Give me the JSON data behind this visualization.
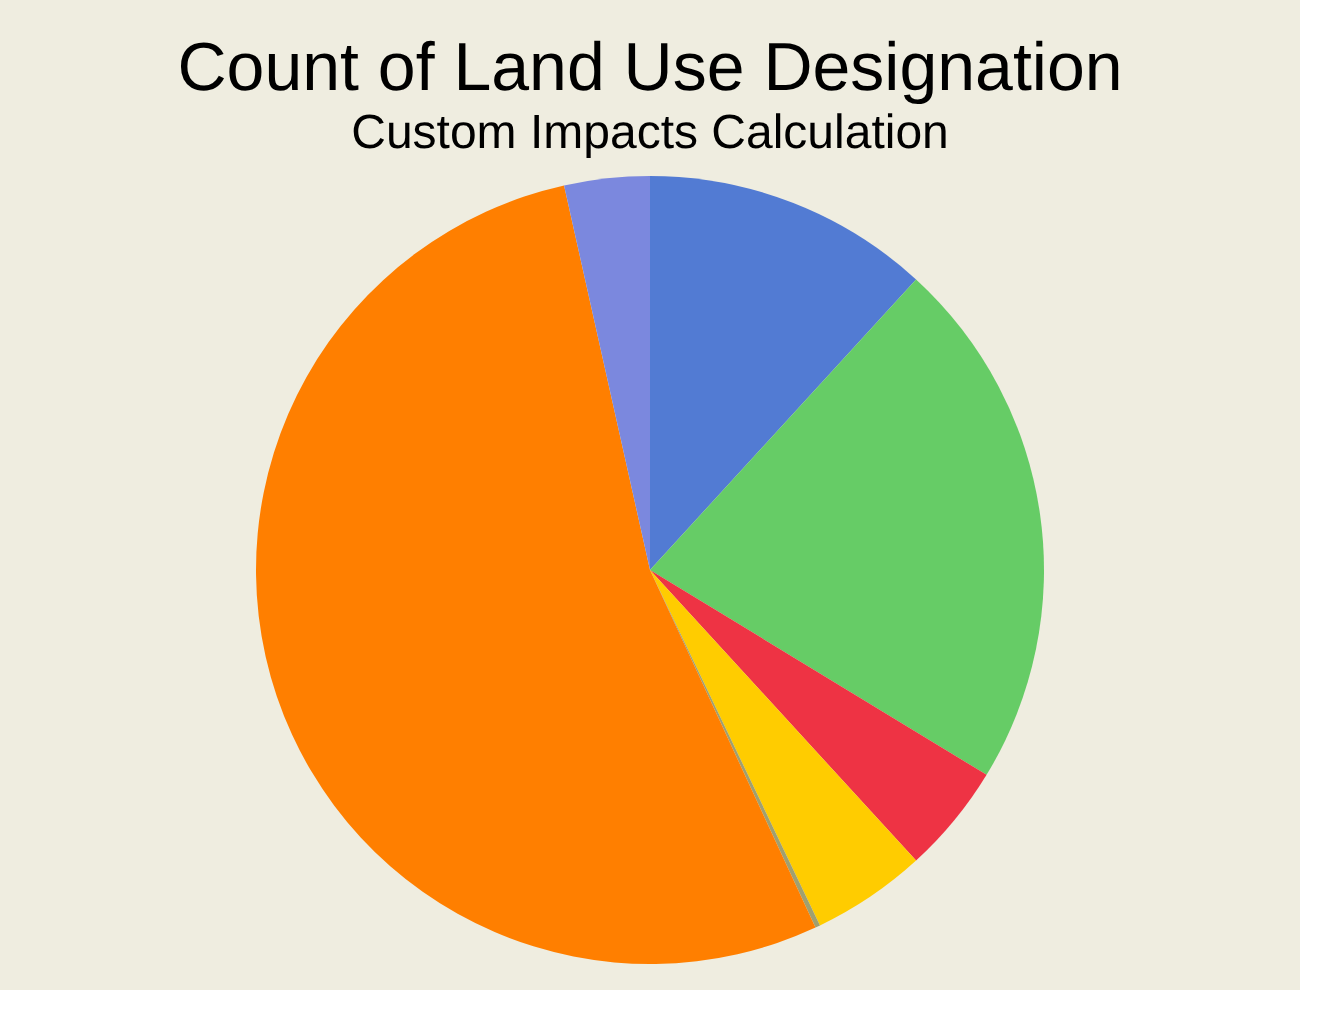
{
  "chart_data": {
    "type": "pie",
    "title": "Count of Land Use Designation",
    "subtitle": "Custom Impacts Calculation",
    "categories": [
      null,
      null,
      null,
      null,
      null,
      null,
      null
    ],
    "values": [
      11.8,
      21.9,
      4.5,
      4.7,
      0.2,
      53.4,
      3.5
    ],
    "colors": [
      "#527bd3",
      "#66cc66",
      "#ee3344",
      "#ffcc00",
      "#a0a070",
      "#ff7f00",
      "#7b88de"
    ],
    "legend": false
  }
}
